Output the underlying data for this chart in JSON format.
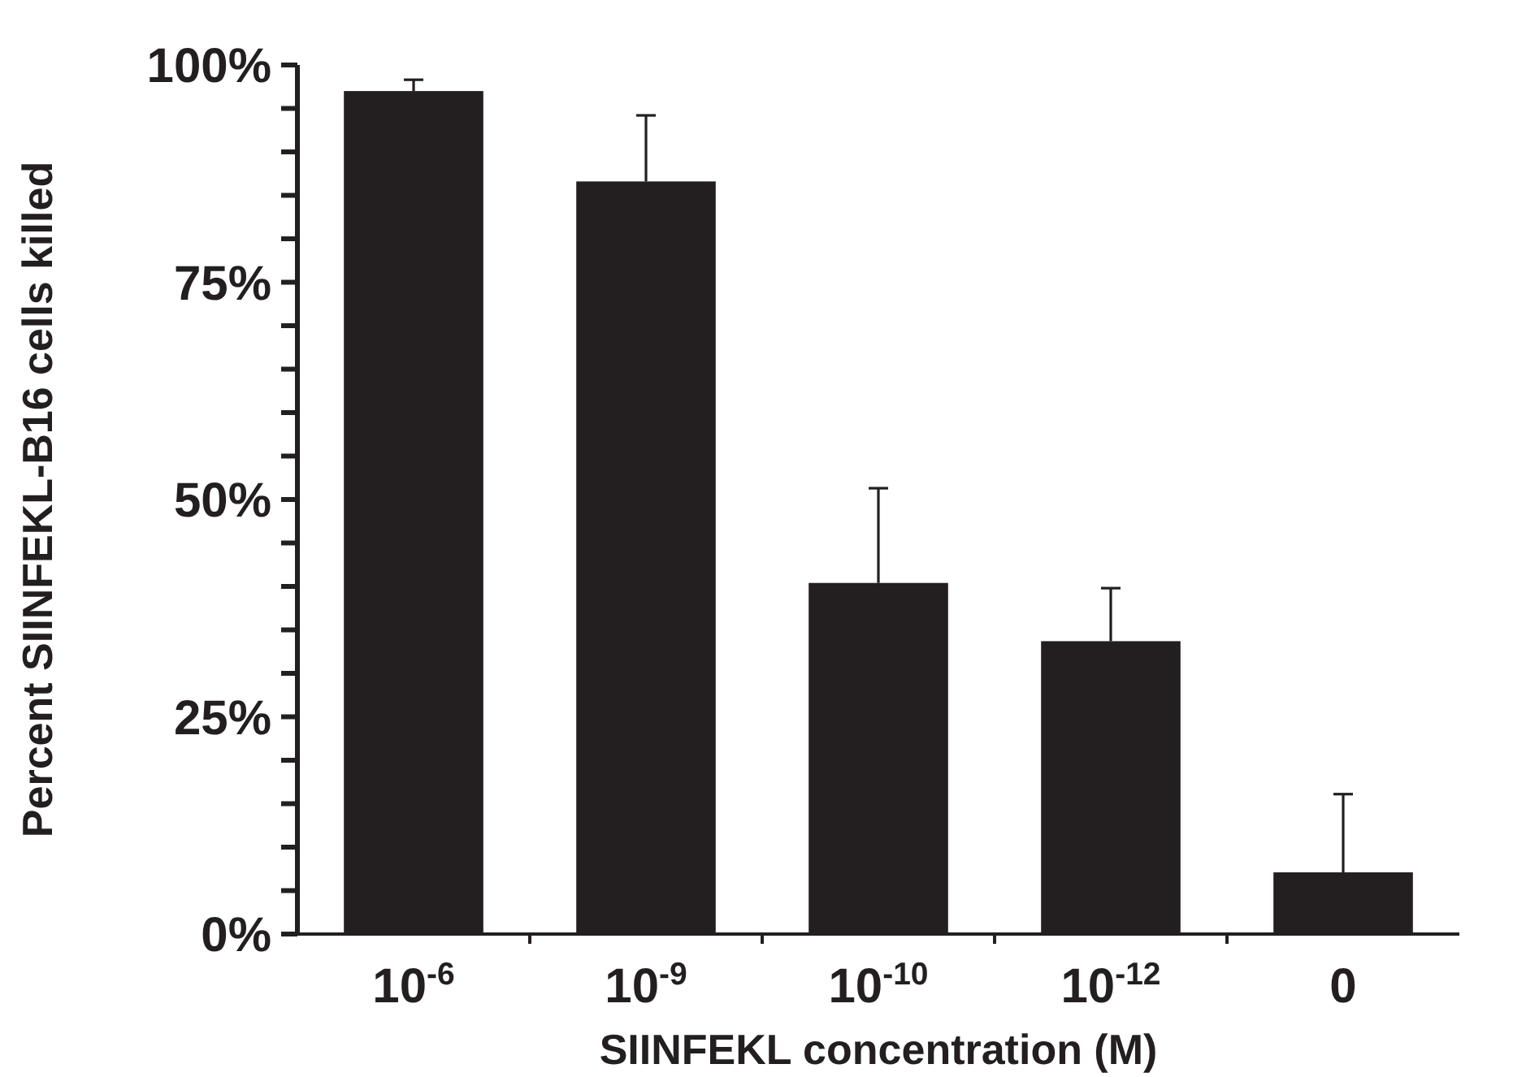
{
  "chart_data": {
    "type": "bar",
    "xlabel": "SIINFEKL concentration (M)",
    "ylabel": "Percent SIINFEKL-B16 cells killed",
    "categories": [
      "10$^{-6}$",
      "10$^{-9}$",
      "10$^{-10}$",
      "10$^{-12}$",
      "0"
    ],
    "values": [
      97.0,
      86.6,
      40.4,
      33.7,
      7.1
    ],
    "errors": [
      [
        97.0,
        98.3
      ],
      [
        86.6,
        94.2
      ],
      [
        40.4,
        51.3
      ],
      [
        33.7,
        39.8
      ],
      [
        7.1,
        16.1
      ]
    ],
    "color": "#231f20",
    "ylim": [
      0,
      100
    ],
    "yticks": [
      {
        "value": 0,
        "label": "0%"
      },
      {
        "value": 5,
        "label": null
      },
      {
        "value": 10,
        "label": null
      },
      {
        "value": 15,
        "label": null
      },
      {
        "value": 20,
        "label": null
      },
      {
        "value": 25,
        "label": "25%"
      },
      {
        "value": 30,
        "label": null
      },
      {
        "value": 35,
        "label": null
      },
      {
        "value": 40,
        "label": null
      },
      {
        "value": 45,
        "label": null
      },
      {
        "value": 50,
        "label": "50%"
      },
      {
        "value": 55,
        "label": null
      },
      {
        "value": 60,
        "label": null
      },
      {
        "value": 65,
        "label": null
      },
      {
        "value": 70,
        "label": null
      },
      {
        "value": 75,
        "label": "75%"
      },
      {
        "value": 80,
        "label": null
      },
      {
        "value": 85,
        "label": null
      },
      {
        "value": 90,
        "label": null
      },
      {
        "value": 95,
        "label": null
      },
      {
        "value": 100,
        "label": "100%"
      }
    ],
    "grid": false
  }
}
